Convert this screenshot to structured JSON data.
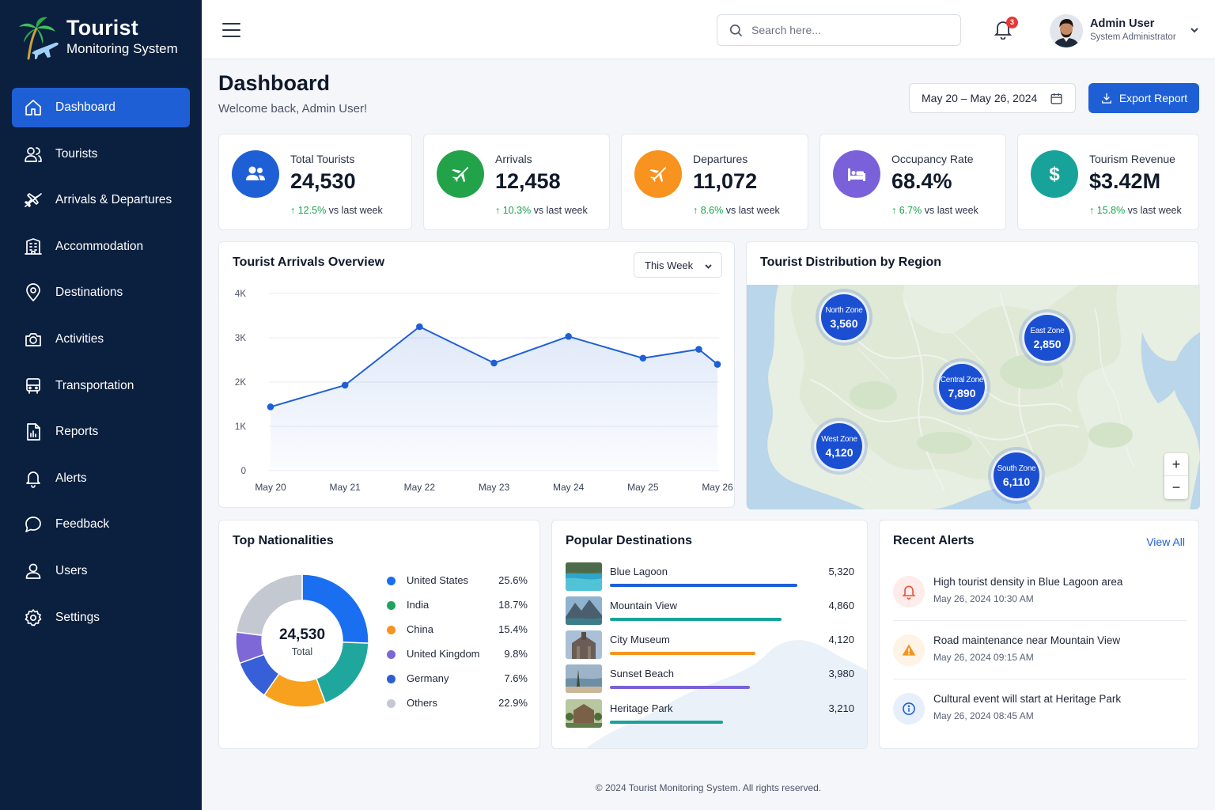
{
  "brand": {
    "title": "Tourist",
    "subtitle": "Monitoring System"
  },
  "sidebar": {
    "items": [
      {
        "label": "Dashboard",
        "icon": "home-icon",
        "active": true
      },
      {
        "label": "Tourists",
        "icon": "users-icon"
      },
      {
        "label": "Arrivals & Departures",
        "icon": "plane-icon"
      },
      {
        "label": "Accommodation",
        "icon": "building-icon"
      },
      {
        "label": "Destinations",
        "icon": "map-pin-icon"
      },
      {
        "label": "Activities",
        "icon": "camera-icon"
      },
      {
        "label": "Transportation",
        "icon": "bus-icon"
      },
      {
        "label": "Reports",
        "icon": "report-icon"
      },
      {
        "label": "Alerts",
        "icon": "bell-icon"
      },
      {
        "label": "Feedback",
        "icon": "chat-icon"
      },
      {
        "label": "Users",
        "icon": "user-icon"
      },
      {
        "label": "Settings",
        "icon": "gear-icon"
      }
    ]
  },
  "topbar": {
    "search_placeholder": "Search here...",
    "notification_count": "3",
    "user_name": "Admin User",
    "user_role": "System Administrator"
  },
  "header": {
    "title": "Dashboard",
    "subtitle": "Welcome back, Admin User!",
    "date_range": "May 20 – May 26, 2024",
    "export_label": "Export Report"
  },
  "stats": [
    {
      "label": "Total Tourists",
      "value": "24,530",
      "delta": "12.5%",
      "delta_suffix": "vs last week",
      "color": "#1f5fd6"
    },
    {
      "label": "Arrivals",
      "value": "12,458",
      "delta": "10.3%",
      "delta_suffix": "vs last week",
      "color": "#22a34a"
    },
    {
      "label": "Departures",
      "value": "11,072",
      "delta": "8.6%",
      "delta_suffix": "vs last week",
      "color": "#f7931e"
    },
    {
      "label": "Occupancy Rate",
      "value": "68.4%",
      "delta": "6.7%",
      "delta_suffix": "vs last week",
      "color": "#7b61d9"
    },
    {
      "label": "Tourism Revenue",
      "value": "$3.42M",
      "delta": "15.8%",
      "delta_suffix": "vs last week",
      "color": "#17a39a"
    }
  ],
  "arrivals_chart": {
    "title": "Tourist Arrivals Overview",
    "period": "This Week",
    "chart_data": {
      "type": "area",
      "x": [
        "May 20",
        "May 21",
        "May 22",
        "May 23",
        "May 24",
        "May 25",
        "May 26"
      ],
      "y_ticks": [
        "0",
        "1K",
        "2K",
        "3K",
        "4K"
      ],
      "ylim": [
        0,
        4000
      ],
      "points": [
        {
          "x": 0,
          "y": 1440
        },
        {
          "x": 1,
          "y": 1930
        },
        {
          "x": 2,
          "y": 3250
        },
        {
          "x": 3,
          "y": 2430
        },
        {
          "x": 4,
          "y": 3030
        },
        {
          "x": 5,
          "y": 2540
        },
        {
          "x": 5.75,
          "y": 2740
        },
        {
          "x": 6,
          "y": 2400
        }
      ],
      "color": "#1f5fd6",
      "grid": true
    }
  },
  "region_map": {
    "title": "Tourist Distribution by Region",
    "zones": [
      {
        "name": "North Zone",
        "value": "3,560"
      },
      {
        "name": "East Zone",
        "value": "2,850"
      },
      {
        "name": "Central Zone",
        "value": "7,890"
      },
      {
        "name": "West Zone",
        "value": "4,120"
      },
      {
        "name": "South Zone",
        "value": "6,110"
      }
    ]
  },
  "nationalities": {
    "title": "Top Nationalities",
    "total": "24,530",
    "total_label": "Total",
    "chart_data": {
      "type": "pie",
      "slices": [
        {
          "name": "United States",
          "pct": "25.6%",
          "value": 25.6,
          "color": "#1a6ff0"
        },
        {
          "name": "India",
          "pct": "18.7%",
          "value": 18.7,
          "color": "#1fa79d"
        },
        {
          "name": "China",
          "pct": "15.4%",
          "value": 15.4,
          "color": "#f7a11e"
        },
        {
          "name": "United Kingdom",
          "pct": "9.8%",
          "value": 9.8,
          "color": "#3760d8"
        },
        {
          "name": "Germany",
          "pct": "7.6%",
          "value": 7.6,
          "color": "#7e67d6"
        },
        {
          "name": "Others",
          "pct": "22.9%",
          "value": 22.9,
          "color": "#c4c8d0"
        }
      ]
    },
    "legend": [
      {
        "name": "United States",
        "pct": "25.6%",
        "color": "#1a6ff0"
      },
      {
        "name": "India",
        "pct": "18.7%",
        "color": "#22a35a"
      },
      {
        "name": "China",
        "pct": "15.4%",
        "color": "#f7931e"
      },
      {
        "name": "United Kingdom",
        "pct": "9.8%",
        "color": "#7e67d6"
      },
      {
        "name": "Germany",
        "pct": "7.6%",
        "color": "#2d5fd0"
      },
      {
        "name": "Others",
        "pct": "22.9%",
        "color": "#c4c8d0"
      }
    ]
  },
  "destinations": {
    "title": "Popular Destinations",
    "items": [
      {
        "name": "Blue Lagoon",
        "value": "5,320",
        "visitors": 5320,
        "color": "#1f5fd6"
      },
      {
        "name": "Mountain View",
        "value": "4,860",
        "visitors": 4860,
        "color": "#17a39a"
      },
      {
        "name": "City Museum",
        "value": "4,120",
        "visitors": 4120,
        "color": "#f7931e"
      },
      {
        "name": "Sunset Beach",
        "value": "3,980",
        "visitors": 3980,
        "color": "#7b61d9"
      },
      {
        "name": "Heritage Park",
        "value": "3,210",
        "visitors": 3210,
        "color": "#17a39a"
      }
    ]
  },
  "alerts": {
    "title": "Recent Alerts",
    "view_all": "View All",
    "items": [
      {
        "text": "High tourist density in Blue Lagoon area",
        "time": "May 26, 2024 10:30 AM",
        "icon": "bell-icon",
        "color": "#e5533d",
        "bg": "#fdecea"
      },
      {
        "text": "Road maintenance near Mountain View",
        "time": "May 26, 2024 09:15 AM",
        "icon": "warning-icon",
        "color": "#f7931e",
        "bg": "#fef3e4"
      },
      {
        "text": "Cultural event will start at Heritage Park",
        "time": "May 26, 2024 08:45 AM",
        "icon": "info-icon",
        "color": "#1f5fd6",
        "bg": "#e8effc"
      }
    ]
  },
  "footer": "© 2024 Tourist Monitoring System. All rights reserved."
}
